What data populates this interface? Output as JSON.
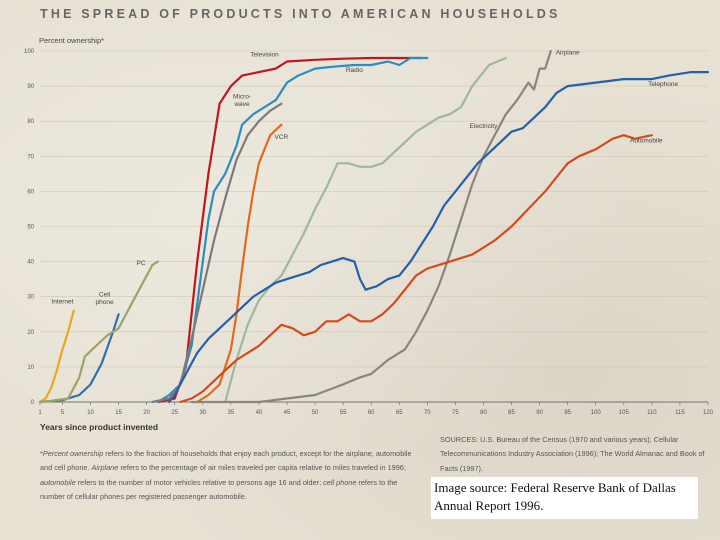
{
  "chart_data": {
    "type": "line",
    "title": "THE SPREAD OF PRODUCTS INTO AMERICAN HOUSEHOLDS",
    "ylabel": "Percent ownership*",
    "xlabel": "Years since product invented",
    "xlim": [
      1,
      120
    ],
    "ylim": [
      0,
      100
    ],
    "x_ticks": [
      1,
      5,
      10,
      15,
      20,
      25,
      30,
      35,
      40,
      45,
      50,
      55,
      60,
      65,
      70,
      75,
      80,
      85,
      90,
      95,
      100,
      105,
      110,
      115,
      120
    ],
    "y_ticks": [
      0,
      10,
      20,
      30,
      40,
      50,
      60,
      70,
      80,
      90,
      100
    ],
    "series": [
      {
        "name": "Internet",
        "color": "#e8a722",
        "label_at": [
          5,
          28
        ],
        "points": [
          [
            1,
            0
          ],
          [
            2,
            1
          ],
          [
            3,
            4
          ],
          [
            4,
            9
          ],
          [
            5,
            15
          ],
          [
            6,
            20
          ],
          [
            7,
            26
          ]
        ]
      },
      {
        "name": "Cell phone",
        "label": "Cell\nphone",
        "color": "#2f6fb0",
        "label_at": [
          12.5,
          30
        ],
        "points": [
          [
            1,
            0
          ],
          [
            5,
            0.5
          ],
          [
            8,
            2
          ],
          [
            10,
            5
          ],
          [
            12,
            11
          ],
          [
            14,
            20
          ],
          [
            15,
            25
          ]
        ]
      },
      {
        "name": "PC",
        "color": "#9aa36a",
        "label_at": [
          19,
          39
        ],
        "points": [
          [
            1,
            0
          ],
          [
            3,
            0.3
          ],
          [
            6,
            1
          ],
          [
            8,
            7
          ],
          [
            9,
            13
          ],
          [
            11,
            16
          ],
          [
            13,
            19
          ],
          [
            15,
            21
          ],
          [
            17,
            27
          ],
          [
            19,
            33
          ],
          [
            20,
            36
          ],
          [
            21,
            39
          ],
          [
            22,
            40
          ]
        ]
      },
      {
        "name": "Television",
        "color": "#c0171b",
        "label_at": [
          41,
          98.5
        ],
        "points": [
          [
            22,
            0
          ],
          [
            25,
            1
          ],
          [
            27,
            10
          ],
          [
            29,
            40
          ],
          [
            31,
            65
          ],
          [
            33,
            85
          ],
          [
            35,
            90
          ],
          [
            37,
            93
          ],
          [
            40,
            94
          ],
          [
            43,
            95
          ],
          [
            45,
            97
          ],
          [
            50,
            97.5
          ],
          [
            55,
            97.8
          ],
          [
            60,
            98
          ],
          [
            65,
            98
          ],
          [
            69,
            98
          ]
        ]
      },
      {
        "name": "Radio",
        "color": "#2a8fbf",
        "label_at": [
          57,
          94
        ],
        "points": [
          [
            22,
            0
          ],
          [
            24,
            2
          ],
          [
            26,
            5
          ],
          [
            28,
            16
          ],
          [
            29,
            28
          ],
          [
            30,
            40
          ],
          [
            31,
            52
          ],
          [
            32,
            60
          ],
          [
            34,
            65
          ],
          [
            35,
            69
          ],
          [
            36,
            73
          ],
          [
            37,
            79
          ],
          [
            39,
            82
          ],
          [
            41,
            84
          ],
          [
            43,
            86
          ],
          [
            45,
            91
          ],
          [
            47,
            93
          ],
          [
            50,
            95
          ],
          [
            53,
            95.5
          ],
          [
            57,
            96
          ],
          [
            60,
            96
          ],
          [
            63,
            97
          ],
          [
            65,
            96
          ],
          [
            67,
            98
          ],
          [
            70,
            98
          ]
        ]
      },
      {
        "name": "Microwave",
        "label": "Micro-\nwave",
        "color": "#7a7a7a",
        "label_at": [
          37,
          86.5
        ],
        "points": [
          [
            21,
            0
          ],
          [
            24,
            1
          ],
          [
            26,
            5
          ],
          [
            28,
            18
          ],
          [
            30,
            32
          ],
          [
            32,
            46
          ],
          [
            34,
            58
          ],
          [
            36,
            69
          ],
          [
            38,
            76
          ],
          [
            40,
            80
          ],
          [
            42,
            83
          ],
          [
            44,
            85
          ]
        ]
      },
      {
        "name": "VCR",
        "color": "#e06a1d",
        "label_at": [
          44,
          75
        ],
        "points": [
          [
            29,
            0
          ],
          [
            31,
            2
          ],
          [
            33,
            5
          ],
          [
            35,
            15
          ],
          [
            36,
            25
          ],
          [
            37,
            38
          ],
          [
            38,
            50
          ],
          [
            39,
            60
          ],
          [
            40,
            68
          ],
          [
            41,
            72
          ],
          [
            42,
            76
          ],
          [
            44,
            79
          ]
        ]
      },
      {
        "name": "Electricity",
        "color": "#9db89a",
        "label_at": [
          80,
          78
        ],
        "points": [
          [
            34,
            0
          ],
          [
            36,
            12
          ],
          [
            38,
            22
          ],
          [
            40,
            29
          ],
          [
            42,
            33
          ],
          [
            44,
            36
          ],
          [
            46,
            42
          ],
          [
            48,
            48
          ],
          [
            50,
            55
          ],
          [
            52,
            61
          ],
          [
            54,
            68
          ],
          [
            56,
            68
          ],
          [
            58,
            67
          ],
          [
            60,
            67
          ],
          [
            62,
            68
          ],
          [
            64,
            71
          ],
          [
            66,
            74
          ],
          [
            68,
            77
          ],
          [
            70,
            79
          ],
          [
            72,
            81
          ],
          [
            74,
            82
          ],
          [
            76,
            84
          ],
          [
            78,
            90
          ],
          [
            81,
            96
          ],
          [
            84,
            98
          ]
        ]
      },
      {
        "name": "Airplane",
        "color": "#8a8580",
        "label_at": [
          95,
          99
        ],
        "points": [
          [
            28,
            0
          ],
          [
            35,
            0
          ],
          [
            40,
            0
          ],
          [
            45,
            1
          ],
          [
            50,
            2
          ],
          [
            55,
            5
          ],
          [
            58,
            7
          ],
          [
            60,
            8
          ],
          [
            63,
            12
          ],
          [
            66,
            15
          ],
          [
            68,
            20
          ],
          [
            70,
            26
          ],
          [
            72,
            33
          ],
          [
            74,
            42
          ],
          [
            76,
            52
          ],
          [
            78,
            62
          ],
          [
            80,
            70
          ],
          [
            82,
            76
          ],
          [
            84,
            82
          ],
          [
            86,
            86
          ],
          [
            88,
            91
          ],
          [
            89,
            89
          ],
          [
            90,
            95
          ],
          [
            91,
            95
          ],
          [
            92,
            100
          ]
        ]
      },
      {
        "name": "Telephone",
        "color": "#2460a7",
        "label_at": [
          112,
          90
        ],
        "points": [
          [
            24,
            0
          ],
          [
            25,
            2
          ],
          [
            27,
            8
          ],
          [
            29,
            14
          ],
          [
            31,
            18
          ],
          [
            33,
            21
          ],
          [
            35,
            24
          ],
          [
            37,
            27
          ],
          [
            39,
            30
          ],
          [
            41,
            32
          ],
          [
            43,
            34
          ],
          [
            45,
            35
          ],
          [
            47,
            36
          ],
          [
            49,
            37
          ],
          [
            51,
            39
          ],
          [
            53,
            40
          ],
          [
            55,
            41
          ],
          [
            57,
            40
          ],
          [
            58,
            35
          ],
          [
            59,
            32
          ],
          [
            61,
            33
          ],
          [
            63,
            35
          ],
          [
            65,
            36
          ],
          [
            67,
            40
          ],
          [
            69,
            45
          ],
          [
            71,
            50
          ],
          [
            73,
            56
          ],
          [
            75,
            60
          ],
          [
            77,
            64
          ],
          [
            79,
            68
          ],
          [
            81,
            71
          ],
          [
            83,
            74
          ],
          [
            85,
            77
          ],
          [
            87,
            78
          ],
          [
            89,
            81
          ],
          [
            91,
            84
          ],
          [
            93,
            88
          ],
          [
            95,
            90
          ],
          [
            100,
            91
          ],
          [
            105,
            92
          ],
          [
            110,
            92
          ],
          [
            113,
            93
          ],
          [
            117,
            94
          ],
          [
            120,
            94
          ]
        ]
      },
      {
        "name": "Automobile",
        "color": "#d44a1c",
        "label_at": [
          109,
          74
        ],
        "points": [
          [
            26,
            0
          ],
          [
            28,
            1
          ],
          [
            30,
            3
          ],
          [
            32,
            6
          ],
          [
            34,
            9
          ],
          [
            36,
            12
          ],
          [
            38,
            14
          ],
          [
            40,
            16
          ],
          [
            42,
            19
          ],
          [
            44,
            22
          ],
          [
            46,
            21
          ],
          [
            48,
            19
          ],
          [
            50,
            20
          ],
          [
            52,
            23
          ],
          [
            54,
            23
          ],
          [
            56,
            25
          ],
          [
            58,
            23
          ],
          [
            60,
            23
          ],
          [
            62,
            25
          ],
          [
            64,
            28
          ],
          [
            66,
            32
          ],
          [
            68,
            36
          ],
          [
            70,
            38
          ],
          [
            72,
            39
          ],
          [
            74,
            40
          ],
          [
            76,
            41
          ],
          [
            78,
            42
          ],
          [
            80,
            44
          ],
          [
            82,
            46
          ],
          [
            85,
            50
          ],
          [
            88,
            55
          ],
          [
            91,
            60
          ],
          [
            93,
            64
          ],
          [
            95,
            68
          ],
          [
            97,
            70
          ],
          [
            100,
            72
          ],
          [
            103,
            75
          ],
          [
            105,
            76
          ],
          [
            107,
            75
          ],
          [
            110,
            76
          ]
        ]
      }
    ]
  },
  "footnote": {
    "segments": [
      {
        "text": "*",
        "style": "normal"
      },
      {
        "text": "Percent ownership",
        "style": "italic"
      },
      {
        "text": " refers to the fraction of households that enjoy each product, except for the airplane, automobile and cell phone. ",
        "style": "normal"
      },
      {
        "text": "Airplane",
        "style": "italic"
      },
      {
        "text": " refers to the percentage of air miles traveled per capita relative to miles traveled in 1996; ",
        "style": "normal"
      },
      {
        "text": "automobile",
        "style": "italic"
      },
      {
        "text": " refers to the number of motor vehicles relative to persons age 16 and older; ",
        "style": "normal"
      },
      {
        "text": "cell phone",
        "style": "italic"
      },
      {
        "text": " refers to the number of cellular phones per registered passenger automobile.",
        "style": "normal"
      }
    ]
  },
  "sources": {
    "text": "SOURCES: U.S. Bureau of the Census (1970 and various years); Cellular Telecommunications Industry Association (1996); The World Almanac and Book of Facts (1997)."
  },
  "credit": {
    "text": "Image source: Federal Reserve Bank of Dallas Annual Report 1996."
  }
}
